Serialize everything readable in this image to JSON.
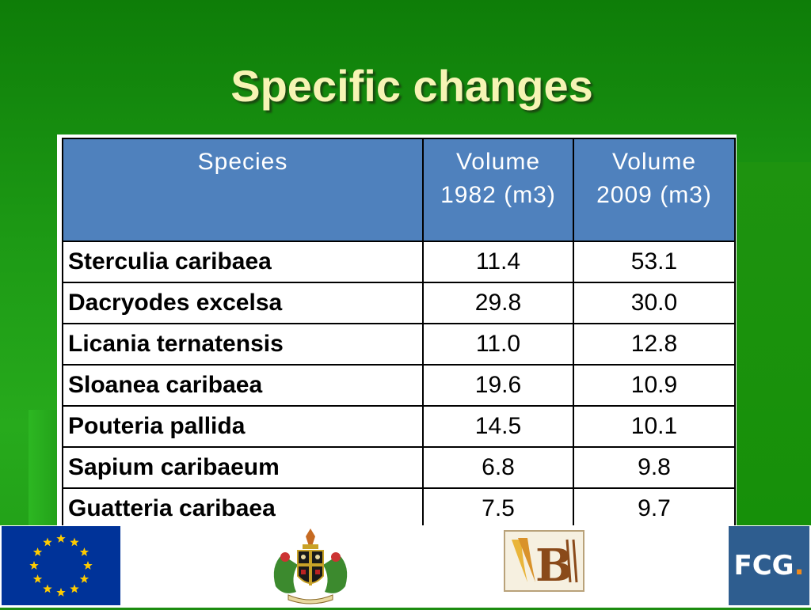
{
  "slide": {
    "title": "Specific changes"
  },
  "table": {
    "headers": {
      "species": "Species",
      "vol1982_line1": "Volume",
      "vol1982_line2": "1982 (m3)",
      "vol2009_line1": "Volume",
      "vol2009_line2": "2009 (m3)"
    },
    "rows": [
      {
        "species": "Sterculia caribaea",
        "v1982": "11.4",
        "v2009": "53.1"
      },
      {
        "species": "Dacryodes excelsa",
        "v1982": "29.8",
        "v2009": "30.0"
      },
      {
        "species": "Licania ternatensis",
        "v1982": "11.0",
        "v2009": "12.8"
      },
      {
        "species": "Sloanea caribaea",
        "v1982": "19.6",
        "v2009": "10.9"
      },
      {
        "species": "Pouteria pallida",
        "v1982": "14.5",
        "v2009": "10.1"
      },
      {
        "species": "Sapium caribaeum",
        "v1982": "6.8",
        "v2009": "9.8"
      },
      {
        "species": "Guatteria caribaea",
        "v1982": "7.5",
        "v2009": "9.7"
      }
    ]
  },
  "footer": {
    "logos": [
      "eu-flag-icon",
      "saint-lucia-crest-icon",
      "b-logo-icon",
      "fcg-logo-icon"
    ],
    "fcg_text": "FCG",
    "fcg_dot": "."
  },
  "colors": {
    "background_green": "#1d9a15",
    "title_yellow": "#f6f4b4",
    "header_blue": "#4f81bd",
    "eu_blue": "#003399",
    "eu_star_yellow": "#ffcc00",
    "fcg_blue": "#2e5d8f",
    "fcg_orange": "#f08a1c"
  }
}
